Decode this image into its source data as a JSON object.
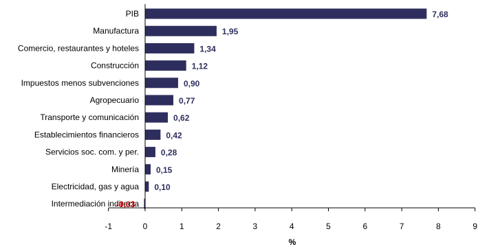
{
  "chart_data": {
    "type": "bar",
    "orientation": "horizontal",
    "categories": [
      "PIB",
      "Manufactura",
      "Comercio, restaurantes y hoteles",
      "Construcción",
      "Impuestos menos subvenciones",
      "Agropecuario",
      "Transporte y comunicación",
      "Establecimientos financieros",
      "Servicios soc. com. y per.",
      "Minería",
      "Electricidad, gas y agua",
      "Intermediación  indirecta"
    ],
    "values": [
      7.68,
      1.95,
      1.34,
      1.12,
      0.9,
      0.77,
      0.62,
      0.42,
      0.28,
      0.15,
      0.1,
      -0.03
    ],
    "value_labels": [
      "7,68",
      "1,95",
      "1,34",
      "1,12",
      "0,90",
      "0,77",
      "0,62",
      "0,42",
      "0,28",
      "0,15",
      "0,10",
      "-0,03"
    ],
    "x_ticks": [
      -1,
      0,
      1,
      2,
      3,
      4,
      5,
      6,
      7,
      8,
      9
    ],
    "xlim": [
      -1,
      9
    ],
    "xlabel": "%",
    "grid": false,
    "colors": {
      "bar": "#2e2e5e",
      "positive_label": "#2e2e5e",
      "negative_label": "#cc0000",
      "axis": "#000000",
      "category_text": "#000000"
    }
  }
}
